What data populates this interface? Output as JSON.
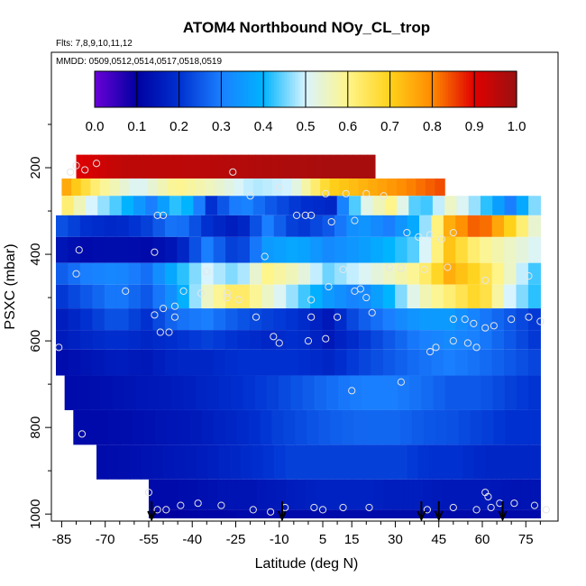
{
  "chart_data": {
    "type": "heatmap",
    "title": "ATOM4 Northbound NOy_CL_trop",
    "annotations": {
      "flights": "Flts: 7,8,9,10,11,12",
      "dates": "MMDD: 0509,0512,0514,0517,0518,0519"
    },
    "xlabel": "Latitude (deg N)",
    "ylabel": "PSXC (mbar)",
    "xlim": [
      -87,
      83
    ],
    "ylim": [
      1010,
      100
    ],
    "x_ticks": [
      -85,
      -70,
      -55,
      -40,
      -25,
      -10,
      5,
      15,
      30,
      45,
      60,
      75
    ],
    "y_ticks": [
      200,
      400,
      600,
      800,
      1000
    ],
    "colorbar": {
      "range": [
        0.0,
        1.0
      ],
      "ticks": [
        "0.0",
        "0.1",
        "0.2",
        "0.3",
        "0.4",
        "0.5",
        "0.6",
        "0.7",
        "0.8",
        "0.9",
        "1.0"
      ],
      "colors": [
        "#6a00d8",
        "#0000a0",
        "#0030d0",
        "#1a7fff",
        "#00b4ff",
        "#d8f4ff",
        "#fff58a",
        "#ffd21a",
        "#ff8a00",
        "#e00000",
        "#9a1010"
      ]
    },
    "arrow_latitudes": [
      -54,
      -9,
      39,
      45,
      67
    ],
    "layers": [
      {
        "p": [
          170,
          225
        ],
        "lat": [
          -80,
          23
        ],
        "values": [
          0.9,
          0.95,
          0.95,
          0.96,
          0.97,
          0.98,
          0.98
        ]
      },
      {
        "p": [
          225,
          265
        ],
        "lat": [
          -85,
          47
        ],
        "values": [
          0.78,
          0.6,
          0.5,
          0.6,
          0.55,
          0.48,
          0.5,
          0.7,
          0.75,
          0.8,
          0.85
        ]
      },
      {
        "p": [
          265,
          310
        ],
        "lat": [
          -85,
          80
        ],
        "values": [
          0.65,
          0.5,
          0.42,
          0.3,
          0.45,
          0.2,
          0.32,
          0.25,
          0.2,
          0.18,
          0.5,
          0.6,
          0.4,
          0.55,
          0.45,
          0.3,
          0.5
        ]
      },
      {
        "p": [
          310,
          360
        ],
        "lat": [
          -87,
          80
        ],
        "values": [
          0.25,
          0.2,
          0.18,
          0.22,
          0.3,
          0.2,
          0.15,
          0.3,
          0.2,
          0.25,
          0.35,
          0.3,
          0.4,
          0.75,
          0.85,
          0.7,
          0.5
        ]
      },
      {
        "p": [
          360,
          420
        ],
        "lat": [
          -87,
          80
        ],
        "values": [
          0.15,
          0.12,
          0.13,
          0.12,
          0.15,
          0.3,
          0.2,
          0.35,
          0.38,
          0.32,
          0.35,
          0.4,
          0.45,
          0.72,
          0.6,
          0.55,
          0.5
        ]
      },
      {
        "p": [
          420,
          470
        ],
        "lat": [
          -87,
          80
        ],
        "values": [
          0.25,
          0.3,
          0.32,
          0.28,
          0.4,
          0.5,
          0.45,
          0.6,
          0.55,
          0.45,
          0.5,
          0.55,
          0.6,
          0.75,
          0.68,
          0.55,
          0.4
        ]
      },
      {
        "p": [
          470,
          525
        ],
        "lat": [
          -87,
          80
        ],
        "values": [
          0.2,
          0.25,
          0.3,
          0.25,
          0.35,
          0.55,
          0.65,
          0.55,
          0.45,
          0.35,
          0.3,
          0.4,
          0.55,
          0.62,
          0.7,
          0.5,
          0.4
        ]
      },
      {
        "p": [
          525,
          575
        ],
        "lat": [
          -87,
          80
        ],
        "values": [
          0.15,
          0.2,
          0.25,
          0.2,
          0.28,
          0.3,
          0.25,
          0.22,
          0.2,
          0.15,
          0.25,
          0.3,
          0.35,
          0.35,
          0.3,
          0.25,
          0.2
        ]
      },
      {
        "p": [
          575,
          620
        ],
        "lat": [
          -87,
          80
        ],
        "values": [
          0.15,
          0.18,
          0.2,
          0.18,
          0.2,
          0.22,
          0.2,
          0.18,
          0.2,
          0.15,
          0.2,
          0.25,
          0.3,
          0.32,
          0.3,
          0.25,
          0.2
        ]
      },
      {
        "p": [
          620,
          680
        ],
        "lat": [
          -87,
          80
        ],
        "values": [
          0.12,
          0.14,
          0.16,
          0.15,
          0.18,
          0.18,
          0.2,
          0.2,
          0.2,
          0.18,
          0.22,
          0.25,
          0.28,
          0.3,
          0.28,
          0.25,
          0.22
        ]
      },
      {
        "p": [
          680,
          760
        ],
        "lat": [
          -84,
          80
        ],
        "values": [
          0.12,
          0.13,
          0.14,
          0.15,
          0.16,
          0.18,
          0.2,
          0.22,
          0.25,
          0.28,
          0.3,
          0.3,
          0.28,
          0.25,
          0.25,
          0.22,
          0.2
        ]
      },
      {
        "p": [
          760,
          840
        ],
        "lat": [
          -81,
          80
        ],
        "values": [
          0.12,
          0.12,
          0.13,
          0.14,
          0.15,
          0.17,
          0.19,
          0.22,
          0.24,
          0.26,
          0.27,
          0.27,
          0.25,
          0.24,
          0.22,
          0.2,
          0.2
        ]
      },
      {
        "p": [
          840,
          920
        ],
        "lat": [
          -73,
          80
        ],
        "values": [
          0.12,
          0.13,
          0.14,
          0.15,
          0.16,
          0.18,
          0.2,
          0.22,
          0.22,
          0.22,
          0.22,
          0.22,
          0.2,
          0.2,
          0.18,
          0.18,
          0.18
        ]
      },
      {
        "p": [
          920,
          990
        ],
        "lat": [
          -55,
          80
        ],
        "values": [
          0.12,
          0.12,
          0.13,
          0.14,
          0.14,
          0.15,
          0.16,
          0.17,
          0.17,
          0.17,
          0.16,
          0.16,
          0.15,
          0.15,
          0.15,
          0.14,
          0.14
        ]
      },
      {
        "p": [
          990,
          1010
        ],
        "lat": [
          -55,
          80
        ],
        "values": [
          0.1,
          0.1,
          0.11,
          0.11,
          0.12,
          0.12,
          0.12,
          0.12,
          0.12,
          0.12,
          0.12,
          0.12,
          0.12,
          0.12,
          0.12,
          0.12,
          0.12
        ]
      }
    ],
    "points": [
      [
        -82,
        210
      ],
      [
        -80,
        195
      ],
      [
        -77,
        205
      ],
      [
        -73,
        190
      ],
      [
        -26,
        210
      ],
      [
        -20,
        265
      ],
      [
        -10,
        245
      ],
      [
        6,
        260
      ],
      [
        13,
        260
      ],
      [
        20,
        260
      ],
      [
        26,
        265
      ],
      [
        -52,
        310
      ],
      [
        -50,
        310
      ],
      [
        -4,
        310
      ],
      [
        -1,
        310
      ],
      [
        1,
        310
      ],
      [
        8,
        325
      ],
      [
        16,
        322
      ],
      [
        34,
        350
      ],
      [
        38,
        360
      ],
      [
        42,
        355
      ],
      [
        46,
        365
      ],
      [
        50,
        350
      ],
      [
        -79,
        390
      ],
      [
        -53,
        395
      ],
      [
        -15,
        405
      ],
      [
        28,
        430
      ],
      [
        12,
        435
      ],
      [
        32,
        432
      ],
      [
        40,
        435
      ],
      [
        48,
        430
      ],
      [
        61,
        460
      ],
      [
        76,
        450
      ],
      [
        -80,
        445
      ],
      [
        -35,
        440
      ],
      [
        -37,
        490
      ],
      [
        -28,
        490
      ],
      [
        -43,
        485
      ],
      [
        1,
        505
      ],
      [
        7,
        475
      ],
      [
        16,
        485
      ],
      [
        18,
        480
      ],
      [
        20,
        500
      ],
      [
        -63,
        485
      ],
      [
        -50,
        525
      ],
      [
        -46,
        520
      ],
      [
        -46,
        545
      ],
      [
        -53,
        540
      ],
      [
        -28,
        500
      ],
      [
        -24,
        505
      ],
      [
        -18,
        545
      ],
      [
        1,
        545
      ],
      [
        10,
        545
      ],
      [
        22,
        535
      ],
      [
        50,
        550
      ],
      [
        54,
        550
      ],
      [
        57,
        560
      ],
      [
        61,
        570
      ],
      [
        64,
        565
      ],
      [
        70,
        550
      ],
      [
        76,
        545
      ],
      [
        80,
        555
      ],
      [
        -51,
        580
      ],
      [
        -48,
        580
      ],
      [
        -12,
        590
      ],
      [
        -10,
        605
      ],
      [
        0,
        600
      ],
      [
        6,
        595
      ],
      [
        42,
        625
      ],
      [
        44,
        615
      ],
      [
        50,
        600
      ],
      [
        55,
        605
      ],
      [
        58,
        615
      ],
      [
        -86,
        615
      ],
      [
        32,
        695
      ],
      [
        15,
        715
      ],
      [
        -78,
        815
      ],
      [
        -55,
        950
      ],
      [
        -52,
        990
      ],
      [
        -49,
        990
      ],
      [
        -44,
        980
      ],
      [
        -38,
        975
      ],
      [
        -30,
        980
      ],
      [
        -19,
        990
      ],
      [
        -13,
        995
      ],
      [
        -8,
        985
      ],
      [
        2,
        985
      ],
      [
        5,
        990
      ],
      [
        12,
        985
      ],
      [
        21,
        985
      ],
      [
        41,
        990
      ],
      [
        50,
        985
      ],
      [
        58,
        990
      ],
      [
        61,
        950
      ],
      [
        62,
        960
      ],
      [
        63,
        985
      ],
      [
        66,
        975
      ],
      [
        71,
        975
      ],
      [
        78,
        980
      ],
      [
        82,
        990
      ]
    ]
  }
}
